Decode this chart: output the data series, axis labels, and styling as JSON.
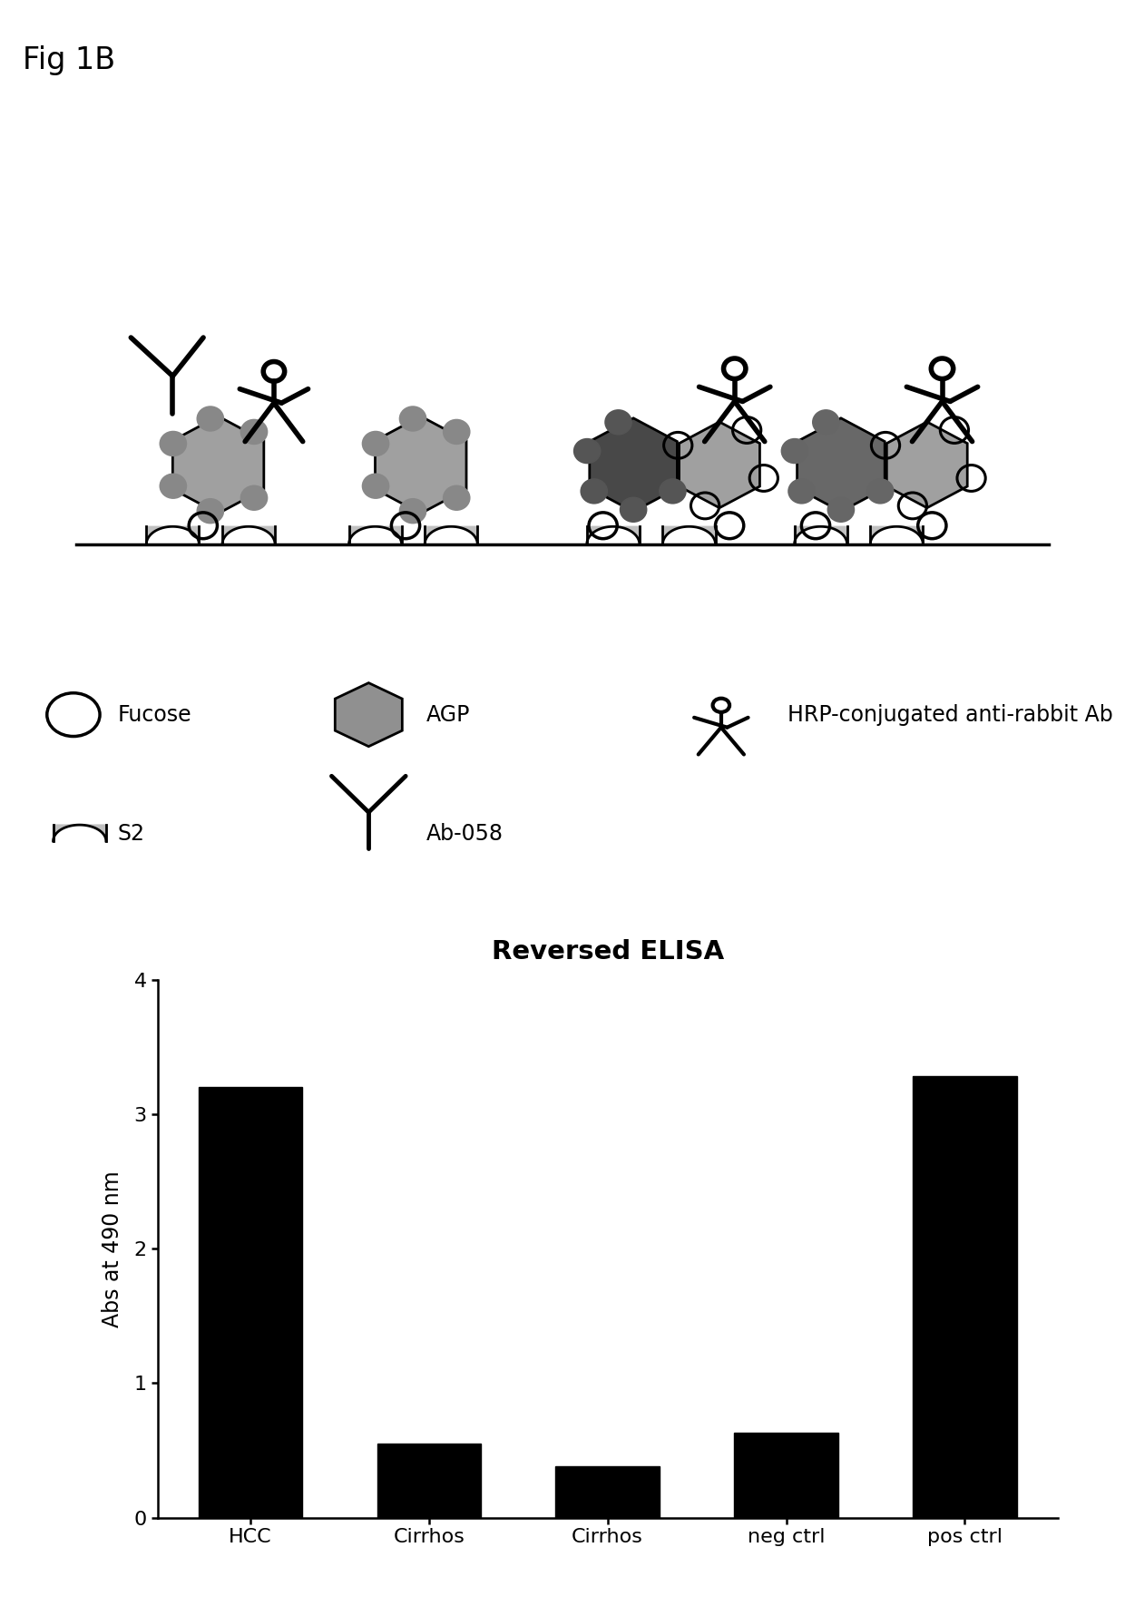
{
  "fig_label": "Fig 1B",
  "bar_categories": [
    "HCC",
    "Cirrhos",
    "Cirrhos",
    "neg ctrl",
    "pos ctrl"
  ],
  "bar_values": [
    3.2,
    0.55,
    0.38,
    0.63,
    3.28
  ],
  "bar_color": "#000000",
  "chart_title": "Reversed ELISA",
  "ylabel": "Abs at 490 nm",
  "ylim": [
    0,
    4
  ],
  "yticks": [
    0,
    1,
    2,
    3,
    4
  ],
  "bg_color": "#ffffff",
  "hex_light": "#a0a0a0",
  "hex_dark": "#484848",
  "circle_gray": "#888888",
  "u_gray": "#c0c0c0",
  "hex_legend": "#909090"
}
